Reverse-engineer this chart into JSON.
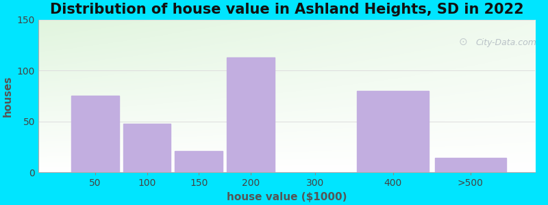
{
  "title": "Distribution of house value in Ashland Heights, SD in 2022",
  "xlabel": "house value ($1000)",
  "ylabel": "houses",
  "bar_labels": [
    "50",
    "100",
    "150",
    "200",
    "300",
    "400",
    ">500"
  ],
  "values": [
    75,
    48,
    21,
    113,
    0,
    80,
    14
  ],
  "bar_color": "#c2aee0",
  "background_outer": "#00e5ff",
  "background_top": "#eaf5e9",
  "background_bottom": "#f5fff5",
  "ylim": [
    0,
    150
  ],
  "yticks": [
    0,
    50,
    100,
    150
  ],
  "grid_color": "#dddddd",
  "title_fontsize": 15,
  "axis_label_fontsize": 11,
  "watermark_text": "City-Data.com",
  "watermark_color": "#b0b8c0",
  "bar_left_edges": [
    0,
    1,
    2,
    3,
    4,
    5,
    6
  ],
  "bar_widths": [
    0.85,
    0.85,
    0.85,
    0.85,
    0.85,
    0.85,
    0.85
  ],
  "x_positions": [
    0,
    1,
    2,
    3,
    5,
    6,
    8
  ],
  "x_tick_positions": [
    0,
    1,
    2,
    3,
    5,
    6,
    8
  ],
  "xlim": [
    -0.6,
    9.0
  ]
}
